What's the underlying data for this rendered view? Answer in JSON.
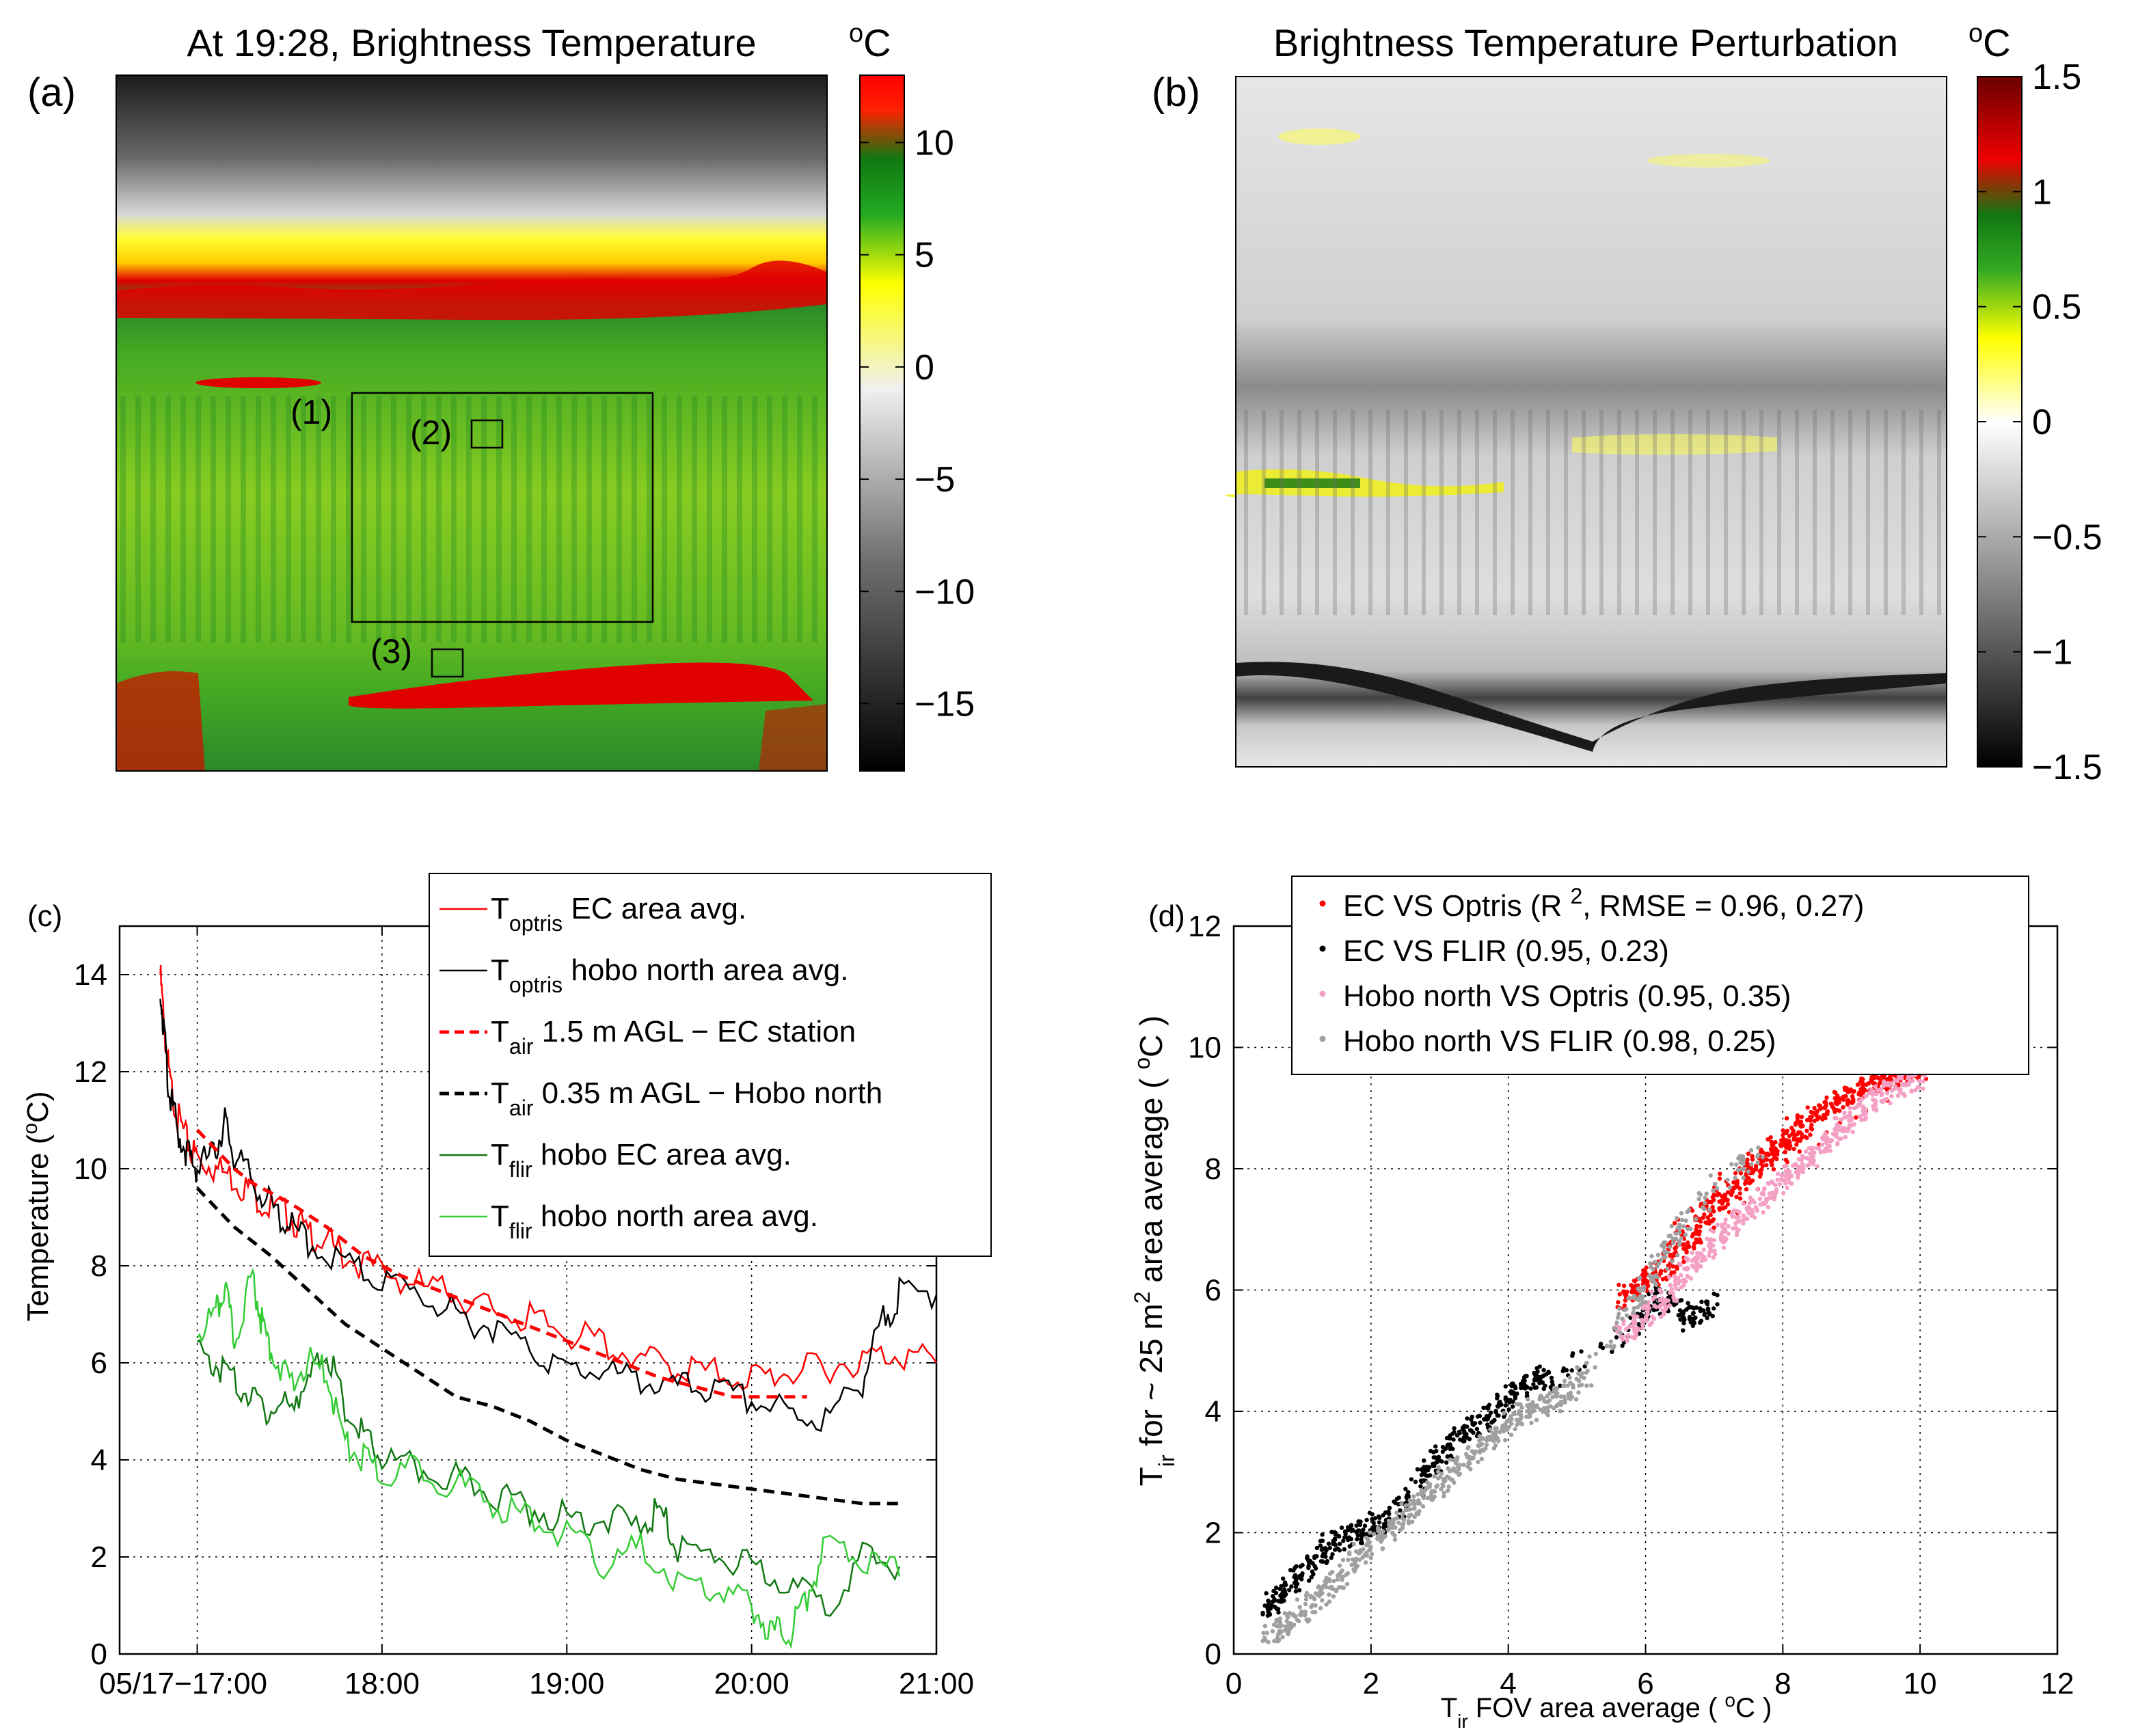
{
  "chart_data": [
    {
      "panel": "(a)",
      "type": "heatmap",
      "title": "At 19:28, Brightness Temperature",
      "colorbar_unit": "oC",
      "colorbar_ticks": [
        10,
        5,
        0,
        -5,
        -10,
        -15
      ],
      "colorbar_tick_labels": [
        "10",
        "5",
        "0",
        "−5",
        "−10",
        "−15"
      ],
      "colorbar_range": [
        -18,
        13
      ],
      "colormap": [
        "#000000",
        "#9a9a9a",
        "#ffffff",
        "#ffff00",
        "#1a9a1a",
        "#ff0000"
      ],
      "annotations": [
        "(1)",
        "(2)",
        "(3)"
      ]
    },
    {
      "panel": "(b)",
      "type": "heatmap",
      "title": "Brightness Temperature Perturbation",
      "colorbar_unit": "oC",
      "colorbar_ticks": [
        1.5,
        1,
        0.5,
        0,
        -0.5,
        -1,
        -1.5
      ],
      "colorbar_tick_labels": [
        "1.5",
        "1",
        "0.5",
        "0",
        "−0.5",
        "−1",
        "−1.5"
      ],
      "colorbar_range": [
        -1.5,
        1.5
      ],
      "colormap": [
        "#000000",
        "#a0a0a0",
        "#ffffff",
        "#ffff00",
        "#1a9a1a",
        "#ff0000",
        "#7a0000"
      ]
    },
    {
      "panel": "(c)",
      "type": "line",
      "xlabel": "",
      "ylabel": "Temperature (oC)",
      "ylabel_text": "Temperature (",
      "ylabel_sup": "o",
      "ylabel_after": "C)",
      "x_unit": "hours after 17:00",
      "xlim": [
        -0.42,
        4.0
      ],
      "ylim": [
        0,
        15
      ],
      "xticks": [
        0,
        1,
        2,
        3,
        4
      ],
      "xtick_labels": [
        "05/17−17:00",
        "18:00",
        "19:00",
        "20:00",
        "21:00"
      ],
      "yticks": [
        0,
        2,
        4,
        6,
        8,
        10,
        12,
        14
      ],
      "ytick_labels": [
        "0",
        "2",
        "4",
        "6",
        "8",
        "10",
        "12",
        "14"
      ],
      "grid": true,
      "legend_position": "top-right",
      "series": [
        {
          "name": "T_optris EC area avg.",
          "label_main": "T",
          "label_sub": "optris",
          "label_rest": " EC area avg.",
          "color": "#ff0000",
          "style": "solid",
          "x": [
            -0.2,
            -0.18,
            -0.15,
            -0.1,
            -0.05,
            0.0,
            0.1,
            0.2,
            0.3,
            0.4,
            0.5,
            0.6,
            0.7,
            0.8,
            1.0,
            1.2,
            1.4,
            1.6,
            1.8,
            2.0,
            2.2,
            2.4,
            2.6,
            2.8,
            3.0,
            3.2,
            3.4,
            3.6,
            3.8,
            4.0
          ],
          "values": [
            14.0,
            13.0,
            11.8,
            11.0,
            10.5,
            10.2,
            10.0,
            9.8,
            9.5,
            9.2,
            9.0,
            8.7,
            8.5,
            8.2,
            7.9,
            7.6,
            7.4,
            7.1,
            6.9,
            6.6,
            6.4,
            6.1,
            5.9,
            5.8,
            5.7,
            5.8,
            5.9,
            6.1,
            6.2,
            6.0
          ]
        },
        {
          "name": "T_optris hobo north area avg.",
          "label_main": "T",
          "label_sub": "optris",
          "label_rest": " hobo north area avg.",
          "color": "#000000",
          "style": "solid",
          "x": [
            -0.2,
            -0.18,
            -0.15,
            -0.1,
            -0.05,
            0.0,
            0.1,
            0.15,
            0.2,
            0.3,
            0.4,
            0.5,
            0.6,
            0.8,
            1.0,
            1.2,
            1.4,
            1.6,
            1.8,
            2.0,
            2.2,
            2.4,
            2.6,
            2.8,
            3.0,
            3.2,
            3.4,
            3.6,
            3.7,
            3.8,
            4.0
          ],
          "values": [
            13.8,
            12.8,
            11.5,
            10.7,
            10.3,
            10.0,
            10.4,
            11.0,
            10.2,
            9.8,
            9.2,
            8.8,
            8.5,
            8.0,
            7.7,
            7.4,
            7.0,
            6.7,
            6.3,
            5.9,
            5.8,
            5.6,
            5.5,
            5.4,
            5.2,
            5.0,
            4.8,
            5.6,
            6.8,
            7.4,
            7.4
          ]
        },
        {
          "name": "T_air 1.5 m AGL − EC station",
          "label_main": "T",
          "label_sub": "air",
          "label_rest": " 1.5 m AGL − EC station",
          "color": "#ff0000",
          "style": "dashed",
          "x": [
            0.0,
            0.1,
            0.2,
            0.3,
            0.5,
            0.7,
            0.9,
            1.1,
            1.3,
            1.5,
            1.7,
            1.9,
            2.1,
            2.3,
            2.5,
            2.7,
            2.9,
            3.1,
            3.3
          ],
          "values": [
            10.8,
            10.4,
            10.0,
            9.7,
            9.3,
            8.8,
            8.2,
            7.8,
            7.5,
            7.2,
            6.9,
            6.6,
            6.3,
            6.0,
            5.7,
            5.5,
            5.3,
            5.3,
            5.3
          ]
        },
        {
          "name": "T_air 0.35 m AGL − Hobo north",
          "label_main": "T",
          "label_sub": "air",
          "label_rest": " 0.35 m AGL − Hobo north",
          "color": "#000000",
          "style": "dashed",
          "x": [
            0.0,
            0.1,
            0.2,
            0.4,
            0.6,
            0.8,
            1.0,
            1.2,
            1.4,
            1.6,
            1.8,
            2.0,
            2.2,
            2.4,
            2.6,
            2.8,
            3.0,
            3.2,
            3.4,
            3.6,
            3.8
          ],
          "values": [
            9.6,
            9.2,
            8.8,
            8.2,
            7.5,
            6.8,
            6.3,
            5.8,
            5.3,
            5.1,
            4.8,
            4.4,
            4.1,
            3.8,
            3.6,
            3.5,
            3.4,
            3.3,
            3.2,
            3.1,
            3.1
          ]
        },
        {
          "name": "T_flir hobo EC area avg.",
          "label_main": "T",
          "label_sub": "flir",
          "label_rest": " hobo EC area avg.",
          "color": "#117711",
          "style": "solid",
          "x": [
            0.0,
            0.1,
            0.2,
            0.3,
            0.4,
            0.5,
            0.6,
            0.7,
            0.8,
            0.9,
            1.0,
            1.2,
            1.4,
            1.6,
            1.8,
            2.0,
            2.2,
            2.4,
            2.5,
            2.6,
            2.8,
            3.0,
            3.2,
            3.4,
            3.6,
            3.8
          ],
          "values": [
            6.2,
            6.0,
            5.6,
            5.3,
            5.0,
            5.2,
            5.6,
            6.3,
            5.0,
            4.5,
            4.0,
            3.8,
            3.6,
            3.3,
            3.0,
            2.8,
            2.8,
            2.6,
            3.0,
            2.2,
            2.0,
            1.8,
            1.4,
            1.0,
            2.0,
            1.8
          ]
        },
        {
          "name": "T_flir hobo north area avg.",
          "label_main": "T",
          "label_sub": "flir",
          "label_rest": " hobo north area avg.",
          "color": "#33cc33",
          "style": "solid",
          "x": [
            0.0,
            0.1,
            0.15,
            0.2,
            0.3,
            0.35,
            0.4,
            0.5,
            0.6,
            0.7,
            0.8,
            0.9,
            1.0,
            1.2,
            1.4,
            1.6,
            1.8,
            2.0,
            2.2,
            2.4,
            2.6,
            2.8,
            3.0,
            3.1,
            3.2,
            3.3,
            3.4,
            3.6,
            3.8
          ],
          "values": [
            6.6,
            7.0,
            7.5,
            6.5,
            7.8,
            6.8,
            6.3,
            5.5,
            6.0,
            5.8,
            4.3,
            4.0,
            3.7,
            3.8,
            3.5,
            3.1,
            2.8,
            2.5,
            1.8,
            2.2,
            1.5,
            1.3,
            1.0,
            0.5,
            0.4,
            1.2,
            2.3,
            2.0,
            1.6
          ]
        }
      ]
    },
    {
      "panel": "(d)",
      "type": "scatter",
      "xlabel": "T_ir FOV area average (oC)",
      "xlabel_main": "T",
      "xlabel_sub": "ir",
      "xlabel_text": " FOV area average ( ",
      "xlabel_sup": "o",
      "xlabel_after": "C )",
      "ylabel": "T_ir for ~ 25 m2 area average (oC)",
      "ylabel_main": "T",
      "ylabel_sub": "ir",
      "ylabel_text": " for ~ 25 m",
      "ylabel_sup2": "2",
      "ylabel_text2": " area average ( ",
      "ylabel_sup": "o",
      "ylabel_after": "C )",
      "xlim": [
        0,
        12
      ],
      "ylim": [
        0,
        12
      ],
      "xticks": [
        0,
        2,
        4,
        6,
        8,
        10,
        12
      ],
      "xtick_labels": [
        "0",
        "2",
        "4",
        "6",
        "8",
        "10",
        "12"
      ],
      "yticks": [
        0,
        2,
        4,
        6,
        8,
        10,
        12
      ],
      "ytick_labels": [
        "0",
        "2",
        "4",
        "6",
        "8",
        "10",
        "12"
      ],
      "grid": true,
      "legend_position": "top-left",
      "series": [
        {
          "name": "EC VS Optris (R 2, RMSE = 0.96, 0.27)",
          "label_pre": "EC VS Optris (R ",
          "label_sup": "2",
          "label_post": ", RMSE = 0.96, 0.27)",
          "color": "#ff0000",
          "x": [
            5.6,
            5.8,
            6.0,
            6.2,
            6.4,
            6.6,
            6.8,
            7.0,
            7.2,
            7.4,
            7.6,
            7.8,
            8.0,
            8.2,
            8.4,
            8.6,
            8.8,
            9.0,
            9.2,
            9.4,
            9.6,
            9.8,
            10.0,
            10.2,
            10.4,
            6.3,
            6.9,
            7.7,
            8.3
          ],
          "values": [
            5.8,
            6.0,
            6.2,
            6.3,
            6.5,
            6.8,
            7.0,
            7.3,
            7.5,
            7.8,
            8.0,
            8.2,
            8.4,
            8.6,
            8.8,
            9.0,
            9.1,
            9.2,
            9.3,
            9.4,
            9.5,
            9.6,
            9.7,
            9.8,
            9.9,
            6.7,
            7.5,
            8.2,
            8.8
          ]
        },
        {
          "name": "EC VS FLIR (0.95, 0.23)",
          "label_pre": "EC VS FLIR (0.95, 0.23)",
          "label_sup": "",
          "label_post": "",
          "color": "#000000",
          "x": [
            0.5,
            0.6,
            0.8,
            1.0,
            1.2,
            1.4,
            1.6,
            1.8,
            2.0,
            2.2,
            2.5,
            2.8,
            3.0,
            3.2,
            3.4,
            3.6,
            3.8,
            4.0,
            4.2,
            4.4,
            4.6,
            5.8,
            6.0,
            6.2,
            6.4,
            6.6,
            6.8,
            7.0
          ],
          "values": [
            0.7,
            0.9,
            1.1,
            1.3,
            1.6,
            1.8,
            1.9,
            2.0,
            2.1,
            2.2,
            2.5,
            3.0,
            3.2,
            3.5,
            3.7,
            3.8,
            4.0,
            4.2,
            4.4,
            4.6,
            4.5,
            5.3,
            5.6,
            5.9,
            5.8,
            5.5,
            5.6,
            5.8
          ]
        },
        {
          "name": "Hobo north VS Optris (0.95, 0.35)",
          "label_pre": "Hobo north VS Optris (0.95, 0.35)",
          "label_sup": "",
          "label_post": "",
          "color": "#f4a0c4",
          "x": [
            5.6,
            5.8,
            6.0,
            6.2,
            6.4,
            6.6,
            6.8,
            7.0,
            7.2,
            7.4,
            7.6,
            7.8,
            8.0,
            8.2,
            8.4,
            8.6,
            8.8,
            9.0,
            9.2,
            9.4,
            9.6,
            9.8,
            10.0
          ],
          "values": [
            5.3,
            5.4,
            5.6,
            5.8,
            6.0,
            6.3,
            6.5,
            6.8,
            7.0,
            7.2,
            7.4,
            7.6,
            7.8,
            8.0,
            8.2,
            8.4,
            8.6,
            8.8,
            9.0,
            9.2,
            9.3,
            9.4,
            9.5
          ]
        },
        {
          "name": "Hobo north VS FLIR (0.98, 0.25)",
          "label_pre": "Hobo north VS FLIR (0.98, 0.25)",
          "label_sup": "",
          "label_post": "",
          "color": "#a0a0a0",
          "x": [
            0.5,
            0.7,
            0.9,
            1.1,
            1.3,
            1.5,
            1.7,
            1.9,
            2.1,
            2.3,
            2.5,
            2.7,
            2.9,
            3.1,
            3.3,
            3.5,
            3.7,
            3.9,
            4.1,
            4.3,
            4.5,
            4.7,
            4.9,
            5.1,
            5.8,
            6.0,
            6.2,
            6.4,
            6.6,
            7.3,
            7.6
          ],
          "values": [
            0.3,
            0.4,
            0.6,
            0.8,
            1.0,
            1.2,
            1.5,
            1.7,
            1.9,
            2.1,
            2.3,
            2.5,
            2.7,
            2.9,
            3.1,
            3.3,
            3.5,
            3.7,
            3.9,
            4.0,
            4.1,
            4.2,
            4.3,
            4.6,
            5.7,
            6.0,
            6.4,
            6.8,
            7.2,
            8.0,
            8.2
          ]
        }
      ]
    }
  ]
}
